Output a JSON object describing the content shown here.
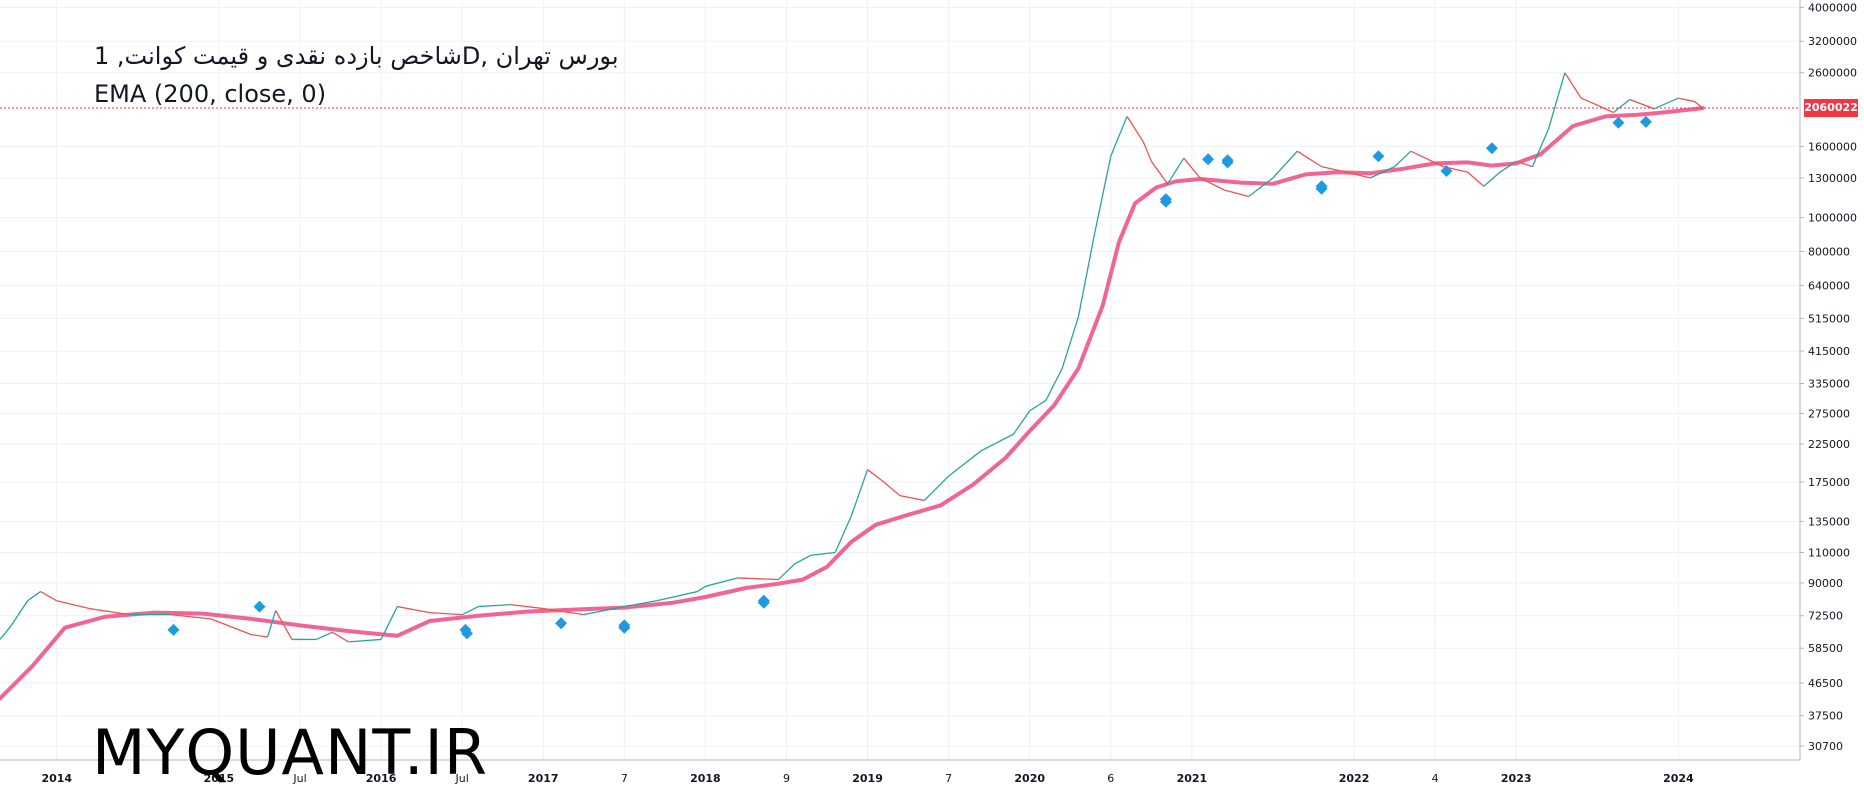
{
  "header": {
    "title_line1": "شاخص بازده نقدی و قیمت کوانت, 1D, بورس تهران",
    "title_line2": "EMA (200, close, 0)"
  },
  "watermark": "MYQUANT.IR",
  "last_price_label": "2060022",
  "colors": {
    "ema": "#f06595",
    "price_up": "#26a69a",
    "price_down": "#ef5350",
    "marker": "#1e9be0",
    "grid": "#eef0f3",
    "last_price": "#f23645"
  },
  "chart_data": {
    "type": "line",
    "y_scale": "log",
    "ylim": [
      28000,
      4200000
    ],
    "y_ticks": [
      4000000,
      3200000,
      2600000,
      2060022,
      1600000,
      1300000,
      1000000,
      800000,
      640000,
      515000,
      415000,
      335000,
      275000,
      225000,
      175000,
      135000,
      110000,
      90000,
      72500,
      58500,
      46500,
      37500,
      30700
    ],
    "y_tick_labels": [
      "4000000",
      "3200000",
      "2600000",
      "2060022",
      "1600000",
      "1300000",
      "1000000",
      "800000",
      "640000",
      "515000",
      "415000",
      "335000",
      "275000",
      "225000",
      "175000",
      "135000",
      "110000",
      "90000",
      "72500",
      "58500",
      "46500",
      "37500",
      "30700"
    ],
    "x_ticks": [
      {
        "label": "2014",
        "t": 2014.0
      },
      {
        "label": "2015",
        "t": 2015.0
      },
      {
        "label": "Jul",
        "t": 2015.5
      },
      {
        "label": "2016",
        "t": 2016.0
      },
      {
        "label": "Jul",
        "t": 2016.5
      },
      {
        "label": "2017",
        "t": 2017.0
      },
      {
        "label": "7",
        "t": 2017.5
      },
      {
        "label": "2018",
        "t": 2018.0
      },
      {
        "label": "9",
        "t": 2018.5
      },
      {
        "label": "2019",
        "t": 2019.0
      },
      {
        "label": "7",
        "t": 2019.5
      },
      {
        "label": "2020",
        "t": 2020.0
      },
      {
        "label": "6",
        "t": 2020.5
      },
      {
        "label": "2021",
        "t": 2021.0
      },
      {
        "label": "2022",
        "t": 2022.0
      },
      {
        "label": "4",
        "t": 2022.5
      },
      {
        "label": "2023",
        "t": 2023.0
      },
      {
        "label": "2024",
        "t": 2024.0
      }
    ],
    "series": [
      {
        "key": "price",
        "points": [
          [
            2013.65,
            62000
          ],
          [
            2013.72,
            68000
          ],
          [
            2013.82,
            80000
          ],
          [
            2013.9,
            85000
          ],
          [
            2014.0,
            80000
          ],
          [
            2014.2,
            76000
          ],
          [
            2014.45,
            73000
          ],
          [
            2014.7,
            73000
          ],
          [
            2014.95,
            71000
          ],
          [
            2015.2,
            64000
          ],
          [
            2015.3,
            63000
          ],
          [
            2015.35,
            75000
          ],
          [
            2015.45,
            62000
          ],
          [
            2015.6,
            62000
          ],
          [
            2015.7,
            65000
          ],
          [
            2015.8,
            61000
          ],
          [
            2016.0,
            62000
          ],
          [
            2016.1,
            77000
          ],
          [
            2016.3,
            74000
          ],
          [
            2016.5,
            73000
          ],
          [
            2016.6,
            77000
          ],
          [
            2016.8,
            78000
          ],
          [
            2017.0,
            76000
          ],
          [
            2017.25,
            73000
          ],
          [
            2017.5,
            77000
          ],
          [
            2017.7,
            80000
          ],
          [
            2017.95,
            85000
          ],
          [
            2018.0,
            88000
          ],
          [
            2018.2,
            93000
          ],
          [
            2018.45,
            92000
          ],
          [
            2018.55,
            102000
          ],
          [
            2018.65,
            108000
          ],
          [
            2018.8,
            110000
          ],
          [
            2018.9,
            140000
          ],
          [
            2019.0,
            190000
          ],
          [
            2019.1,
            175000
          ],
          [
            2019.2,
            160000
          ],
          [
            2019.35,
            155000
          ],
          [
            2019.5,
            182000
          ],
          [
            2019.7,
            215000
          ],
          [
            2019.9,
            240000
          ],
          [
            2020.0,
            280000
          ],
          [
            2020.1,
            300000
          ],
          [
            2020.2,
            370000
          ],
          [
            2020.3,
            520000
          ],
          [
            2020.4,
            900000
          ],
          [
            2020.5,
            1500000
          ],
          [
            2020.6,
            1950000
          ],
          [
            2020.7,
            1650000
          ],
          [
            2020.75,
            1450000
          ],
          [
            2020.85,
            1250000
          ],
          [
            2020.95,
            1480000
          ],
          [
            2021.05,
            1300000
          ],
          [
            2021.2,
            1200000
          ],
          [
            2021.35,
            1150000
          ],
          [
            2021.5,
            1300000
          ],
          [
            2021.65,
            1550000
          ],
          [
            2021.8,
            1400000
          ],
          [
            2021.95,
            1350000
          ],
          [
            2022.1,
            1300000
          ],
          [
            2022.25,
            1400000
          ],
          [
            2022.35,
            1550000
          ],
          [
            2022.55,
            1400000
          ],
          [
            2022.7,
            1350000
          ],
          [
            2022.8,
            1230000
          ],
          [
            2022.9,
            1350000
          ],
          [
            2023.0,
            1450000
          ],
          [
            2023.1,
            1400000
          ],
          [
            2023.2,
            1800000
          ],
          [
            2023.3,
            2600000
          ],
          [
            2023.4,
            2200000
          ],
          [
            2023.5,
            2100000
          ],
          [
            2023.6,
            2000000
          ],
          [
            2023.7,
            2180000
          ],
          [
            2023.85,
            2050000
          ],
          [
            2024.0,
            2200000
          ],
          [
            2024.1,
            2150000
          ],
          [
            2024.15,
            2060022
          ]
        ]
      },
      {
        "key": "ema",
        "points": [
          [
            2013.65,
            42000
          ],
          [
            2013.85,
            52000
          ],
          [
            2014.05,
            67000
          ],
          [
            2014.3,
            72000
          ],
          [
            2014.6,
            74000
          ],
          [
            2014.9,
            73500
          ],
          [
            2015.2,
            71000
          ],
          [
            2015.5,
            68000
          ],
          [
            2015.8,
            65500
          ],
          [
            2016.1,
            63500
          ],
          [
            2016.3,
            70000
          ],
          [
            2016.6,
            72500
          ],
          [
            2016.9,
            74500
          ],
          [
            2017.2,
            75500
          ],
          [
            2017.5,
            76500
          ],
          [
            2017.8,
            79000
          ],
          [
            2018.0,
            82000
          ],
          [
            2018.25,
            87000
          ],
          [
            2018.45,
            89500
          ],
          [
            2018.6,
            92000
          ],
          [
            2018.75,
            100000
          ],
          [
            2018.9,
            118000
          ],
          [
            2019.05,
            132000
          ],
          [
            2019.25,
            141000
          ],
          [
            2019.45,
            150000
          ],
          [
            2019.65,
            172000
          ],
          [
            2019.85,
            205000
          ],
          [
            2020.0,
            245000
          ],
          [
            2020.15,
            290000
          ],
          [
            2020.3,
            370000
          ],
          [
            2020.45,
            560000
          ],
          [
            2020.55,
            850000
          ],
          [
            2020.65,
            1100000
          ],
          [
            2020.78,
            1220000
          ],
          [
            2020.9,
            1270000
          ],
          [
            2021.05,
            1290000
          ],
          [
            2021.3,
            1260000
          ],
          [
            2021.5,
            1250000
          ],
          [
            2021.7,
            1330000
          ],
          [
            2021.9,
            1350000
          ],
          [
            2022.1,
            1340000
          ],
          [
            2022.3,
            1380000
          ],
          [
            2022.5,
            1430000
          ],
          [
            2022.7,
            1440000
          ],
          [
            2022.85,
            1410000
          ],
          [
            2023.0,
            1430000
          ],
          [
            2023.15,
            1520000
          ],
          [
            2023.35,
            1830000
          ],
          [
            2023.55,
            1950000
          ],
          [
            2023.75,
            1970000
          ],
          [
            2023.95,
            2010000
          ],
          [
            2024.15,
            2060022
          ]
        ]
      },
      {
        "key": "markers",
        "points": [
          [
            2014.72,
            66000
          ],
          [
            2015.25,
            77000
          ],
          [
            2016.53,
            64500
          ],
          [
            2016.52,
            66000
          ],
          [
            2017.11,
            69000
          ],
          [
            2017.5,
            67000
          ],
          [
            2017.5,
            68000
          ],
          [
            2018.36,
            79000
          ],
          [
            2018.36,
            80000
          ],
          [
            2020.84,
            1130000
          ],
          [
            2020.84,
            1110000
          ],
          [
            2021.1,
            1470000
          ],
          [
            2021.22,
            1460000
          ],
          [
            2021.22,
            1440000
          ],
          [
            2021.8,
            1230000
          ],
          [
            2021.8,
            1210000
          ],
          [
            2022.15,
            1500000
          ],
          [
            2022.57,
            1360000
          ],
          [
            2022.85,
            1580000
          ],
          [
            2023.63,
            1870000
          ],
          [
            2023.8,
            1880000
          ]
        ]
      }
    ]
  }
}
